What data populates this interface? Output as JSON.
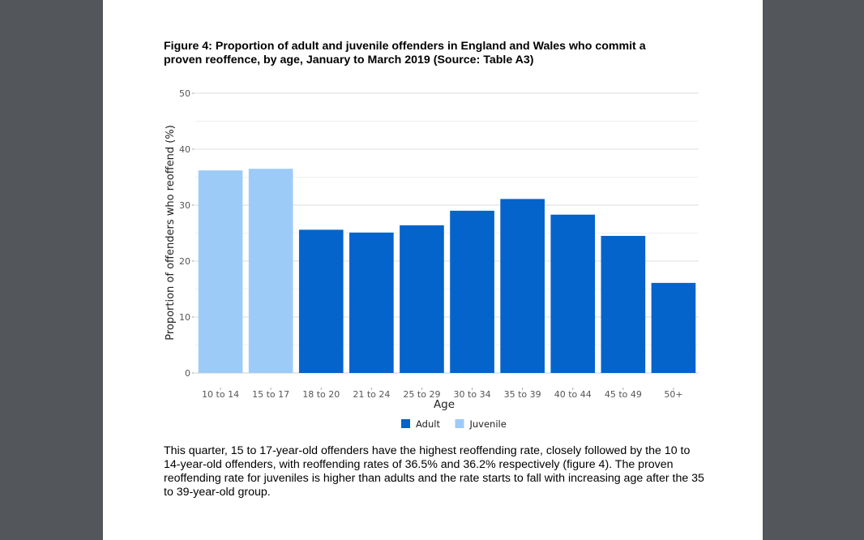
{
  "document": {
    "figure_title": "Figure 4: Proportion of adult and juvenile offenders in England and Wales who commit a proven reoffence, by age, January to March 2019 (Source: Table A3)",
    "paragraph": "This quarter, 15 to 17-year-old offenders have the highest reoffending rate, closely followed by the 10 to 14-year-old offenders, with reoffending rates of 36.5% and 36.2% respectively (figure 4). The proven reoffending rate for juveniles is higher than adults and the rate starts to fall with increasing age after the 35 to 39-year-old group."
  },
  "chart_data": {
    "type": "bar",
    "title": "Figure 4: Proportion of adult and juvenile offenders in England and Wales who commit a proven reoffence, by age, January to March 2019 (Source: Table A3)",
    "xlabel": "Age",
    "ylabel": "Proportion of offenders who reoffend (%)",
    "ylim": [
      0,
      50
    ],
    "yticks": [
      0,
      10,
      20,
      30,
      40,
      50
    ],
    "grid": true,
    "legend_placement": "bottom",
    "categories": [
      "10 to 14",
      "15 to 17",
      "18 to 20",
      "21 to 24",
      "25 to 29",
      "30 to 34",
      "35 to 39",
      "40 to 44",
      "45 to 49",
      "50+"
    ],
    "values": [
      36.2,
      36.5,
      25.6,
      25.1,
      26.4,
      29.0,
      31.1,
      28.3,
      24.5,
      16.1
    ],
    "groups": [
      "Juvenile",
      "Juvenile",
      "Adult",
      "Adult",
      "Adult",
      "Adult",
      "Adult",
      "Adult",
      "Adult",
      "Adult"
    ],
    "legend": [
      {
        "name": "Adult",
        "color": "#0563cc"
      },
      {
        "name": "Juvenile",
        "color": "#9dcbf8"
      }
    ]
  }
}
